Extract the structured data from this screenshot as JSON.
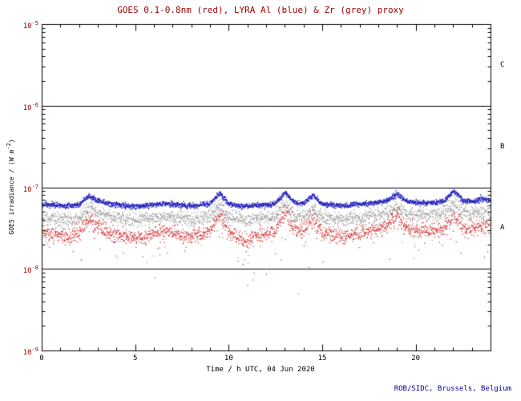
{
  "title": "GOES 0.1-0.8nm (red), LYRA Al (blue) & Zr (grey) proxy",
  "footer": "ROB/SIDC, Brussels, Belgium",
  "colors": {
    "title": "#990000",
    "footer": "#000099",
    "y_tick_labels": "#990000",
    "x_tick_labels": "#000000",
    "axis": "#000000"
  },
  "axes": {
    "x_title": "Time / h UTC, 04 Jun 2020",
    "y_title_pre": "GOES irradiance / (W m",
    "y_title_sup": "-2",
    "y_title_post": ")",
    "y_tick_base": "10",
    "y_exponents": [
      -5,
      -6,
      -7,
      -8,
      -9
    ],
    "x_ticks": [
      0,
      5,
      10,
      15,
      20
    ],
    "class_labels": [
      "C",
      "B",
      "A"
    ]
  },
  "chart_data": {
    "type": "scatter",
    "title": "GOES 0.1-0.8nm (red), LYRA Al (blue) & Zr (grey) proxy",
    "xlabel": "Time / h UTC, 04 Jun 2020",
    "ylabel": "GOES irradiance / (W m-2)",
    "x_range": [
      0,
      24
    ],
    "y_range": [
      1e-09,
      1e-05
    ],
    "y_scale": "log",
    "grid": false,
    "class_lines": [
      1e-06,
      1e-07,
      1e-08
    ],
    "anchor_hours": [
      0,
      0.5,
      1,
      1.5,
      2,
      2.5,
      3,
      3.5,
      4,
      4.5,
      5,
      5.5,
      6,
      6.5,
      7,
      7.5,
      8,
      8.5,
      9,
      9.5,
      10,
      10.5,
      11,
      11.5,
      12,
      12.5,
      13,
      13.5,
      14,
      14.5,
      15,
      15.5,
      16,
      16.5,
      17,
      17.5,
      18,
      18.5,
      19,
      19.5,
      20,
      20.5,
      21,
      21.5,
      22,
      22.5,
      23,
      23.5,
      24
    ],
    "value_scale": 1e-08,
    "series": [
      {
        "name": "GOES 0.1-0.8nm",
        "color": "#cc2222",
        "scatter_sigma": 0.11,
        "outlier_prob": 0.022,
        "values_e8": [
          2.9,
          2.7,
          2.6,
          2.5,
          2.7,
          4.2,
          3.3,
          2.8,
          2.7,
          2.5,
          2.4,
          2.5,
          2.7,
          2.9,
          2.8,
          2.6,
          2.5,
          2.7,
          2.9,
          4.8,
          2.8,
          2.5,
          2.3,
          2.6,
          2.7,
          3.0,
          5.2,
          3.0,
          2.9,
          4.0,
          2.8,
          2.6,
          2.5,
          2.6,
          2.8,
          2.9,
          3.1,
          3.4,
          4.4,
          3.2,
          3.0,
          2.9,
          3.0,
          3.1,
          4.6,
          3.3,
          3.1,
          3.4,
          3.2
        ]
      },
      {
        "name": "LYRA Al proxy",
        "color": "#2222bb",
        "scatter_sigma": 0.035,
        "outlier_prob": 0.003,
        "values_e8": [
          6.3,
          6.1,
          6.0,
          6.0,
          6.2,
          7.8,
          6.9,
          6.4,
          6.2,
          6.0,
          5.9,
          6.0,
          6.2,
          6.4,
          6.3,
          6.1,
          6.0,
          6.2,
          6.4,
          8.6,
          6.3,
          6.0,
          5.9,
          6.1,
          6.2,
          6.5,
          8.8,
          6.6,
          6.4,
          8.0,
          6.3,
          6.1,
          6.0,
          6.1,
          6.3,
          6.4,
          6.6,
          7.0,
          8.4,
          6.8,
          6.6,
          6.5,
          6.6,
          6.8,
          9.2,
          7.0,
          6.8,
          7.2,
          7.0
        ]
      },
      {
        "name": "LYRA Zr proxy",
        "color": "#8f8f8f",
        "scatter_sigma": 0.1,
        "outlier_prob": 0.02,
        "values_e8": [
          4.4,
          4.2,
          4.1,
          4.1,
          4.3,
          5.6,
          4.8,
          4.4,
          4.3,
          4.1,
          4.0,
          4.1,
          4.3,
          4.4,
          4.3,
          4.2,
          4.1,
          4.3,
          4.4,
          6.2,
          4.3,
          4.1,
          4.0,
          4.2,
          4.3,
          4.5,
          6.4,
          4.5,
          4.4,
          5.6,
          4.3,
          4.2,
          4.1,
          4.2,
          4.3,
          4.4,
          4.6,
          4.9,
          5.8,
          4.7,
          4.6,
          4.5,
          4.6,
          4.7,
          6.6,
          4.9,
          4.7,
          5.0,
          4.9
        ]
      }
    ],
    "stray_points": [
      {
        "series": 2,
        "x": 13.7,
        "y": 5e-09
      },
      {
        "series": 0,
        "x": 10.75,
        "y": 1.15e-08
      },
      {
        "series": 2,
        "x": 10.85,
        "y": 1.3e-08
      },
      {
        "series": 0,
        "x": 2.1,
        "y": 1.3e-08
      },
      {
        "series": 2,
        "x": 6.3,
        "y": 1.5e-08
      }
    ]
  }
}
